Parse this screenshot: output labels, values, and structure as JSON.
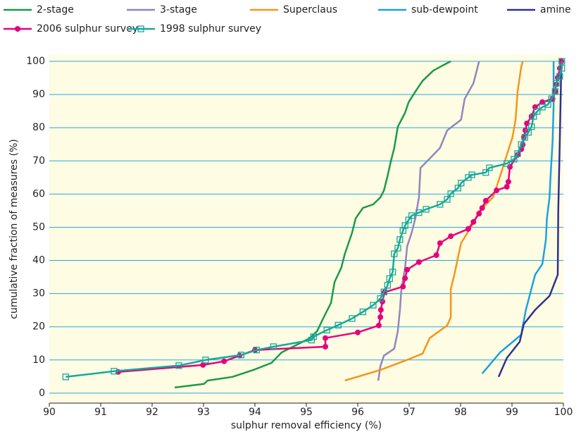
{
  "chart_data": {
    "type": "line",
    "xlabel": "sulphur removal efficiency (%)",
    "ylabel": "cumulative fraction of measures (%)",
    "xlim": [
      90,
      100
    ],
    "xticks": [
      90,
      91,
      92,
      93,
      94,
      95,
      96,
      97,
      98,
      99,
      100
    ],
    "ylim": [
      -3,
      102
    ],
    "yticks": [
      0,
      10,
      20,
      30,
      40,
      50,
      60,
      70,
      80,
      90,
      100
    ],
    "grid": true,
    "series": [
      {
        "name": "2-stage",
        "color": "#1a9a4a",
        "x": [
          92.44,
          93.01,
          93.08,
          93.56,
          93.97,
          94.32,
          94.52,
          94.79,
          95.07,
          95.21,
          95.34,
          95.48,
          95.55,
          95.68,
          95.75,
          95.89,
          95.96,
          96.1,
          96.3,
          96.44,
          96.51,
          96.58,
          96.64,
          96.71,
          96.78,
          96.92,
          96.99,
          97.12,
          97.26,
          97.47,
          97.67,
          97.81
        ],
        "values": [
          1.7,
          2.8,
          3.8,
          4.9,
          7,
          9.1,
          12.3,
          14.4,
          16.6,
          18.7,
          22.9,
          27.2,
          33.5,
          37.8,
          42,
          48.4,
          52.7,
          55.8,
          56.9,
          59,
          61.1,
          65.4,
          69.6,
          73.9,
          80.3,
          84.5,
          87.7,
          90.9,
          94.1,
          97.2,
          98.9,
          100
        ]
      },
      {
        "name": "3-stage",
        "color": "#8f86c0",
        "x": [
          96.4,
          96.44,
          96.51,
          96.71,
          96.78,
          96.82,
          96.85,
          96.92,
          96.96,
          97.05,
          97.12,
          97.19,
          97.22,
          97.4,
          97.6,
          97.74,
          98.01,
          98.08,
          98.25,
          98.36
        ],
        "values": [
          3.8,
          8.1,
          11.3,
          13.4,
          18.7,
          25.1,
          31.4,
          37.8,
          44.2,
          48.4,
          52.7,
          59,
          67.9,
          70.7,
          73.9,
          79.2,
          82.4,
          88.7,
          93.4,
          100
        ]
      },
      {
        "name": "Superclaus",
        "color": "#f7941d",
        "x": [
          95.75,
          96.44,
          96.99,
          97.26,
          97.4,
          97.74,
          97.81,
          97.81,
          97.88,
          97.95,
          98.01,
          98.22,
          98.36,
          98.63,
          98.77,
          98.9,
          99.01,
          99.07,
          99.11,
          99.18,
          99.21
        ],
        "values": [
          3.8,
          7,
          10.2,
          11.9,
          16.6,
          20.4,
          22.9,
          31.4,
          35.7,
          41,
          45.2,
          50.5,
          54.8,
          59,
          65.4,
          71.8,
          77.1,
          82.4,
          90.9,
          98.3,
          100
        ]
      },
      {
        "name": "sub-dewpoint",
        "color": "#1ba1e2",
        "x": [
          98.42,
          98.77,
          99.18,
          99.27,
          99.45,
          99.59,
          99.66,
          99.68,
          99.73,
          99.75,
          99.79,
          99.81,
          99.81
        ],
        "values": [
          5.9,
          12.3,
          17.6,
          25.1,
          35.7,
          38.9,
          46.3,
          52.7,
          59,
          65.4,
          76,
          86.6,
          100
        ]
      },
      {
        "name": "amine",
        "color": "#2e3192",
        "x": [
          98.74,
          98.9,
          99.15,
          99.23,
          99.45,
          99.73,
          99.89,
          99.9,
          99.93,
          99.96
        ],
        "values": [
          4.9,
          10.6,
          15.5,
          20.8,
          25.1,
          29.3,
          35.7,
          54.8,
          76,
          100
        ]
      },
      {
        "name": "2006 sulphur survey",
        "color": "#e6007e",
        "marker": "circle",
        "x": [
          91.34,
          92.99,
          93.4,
          93.7,
          94.0,
          95.37,
          95.37,
          96.0,
          96.41,
          96.44,
          96.45,
          96.48,
          96.52,
          96.88,
          96.92,
          96.96,
          97.19,
          97.53,
          97.6,
          97.81,
          98.15,
          98.25,
          98.36,
          98.42,
          98.49,
          98.7,
          98.9,
          98.93,
          98.96,
          99.11,
          99.18,
          99.21,
          99.23,
          99.26,
          99.29,
          99.38,
          99.45,
          99.59,
          99.79,
          99.84,
          99.86,
          99.89,
          99.93,
          99.96
        ],
        "values": [
          6.4,
          8.5,
          9.6,
          11.3,
          13,
          14,
          16.6,
          18.3,
          20.4,
          22.9,
          25.1,
          27.6,
          30.4,
          32.1,
          34.6,
          37.2,
          39.5,
          41.6,
          45.2,
          47.3,
          49.5,
          51.6,
          54.1,
          55.8,
          58,
          61.1,
          62.2,
          63.7,
          68.2,
          71.8,
          73.5,
          74.9,
          77.1,
          79.2,
          81.3,
          83.4,
          86.2,
          87.7,
          88.7,
          90.9,
          93,
          95.1,
          97.9,
          100
        ]
      },
      {
        "name": "1998 sulphur survey",
        "color": "#16a79d",
        "marker": "square",
        "x": [
          90.32,
          91.26,
          92.52,
          93.04,
          93.73,
          94.03,
          94.36,
          95.1,
          95.14,
          95.4,
          95.62,
          95.89,
          96.1,
          96.3,
          96.44,
          96.51,
          96.58,
          96.62,
          96.68,
          96.71,
          96.78,
          96.82,
          96.88,
          96.92,
          96.99,
          97.05,
          97.19,
          97.33,
          97.6,
          97.74,
          97.81,
          97.95,
          98.01,
          98.15,
          98.22,
          98.49,
          98.56,
          98.9,
          99.04,
          99.11,
          99.18,
          99.25,
          99.32,
          99.38,
          99.42,
          99.49,
          99.59,
          99.7,
          99.77,
          99.84,
          99.86,
          99.93,
          99.97,
          99.97
        ],
        "values": [
          4.9,
          6.6,
          8.3,
          10,
          11.5,
          13,
          14,
          16,
          17,
          19,
          20.5,
          22.5,
          24.5,
          26.5,
          28.5,
          30.5,
          32.5,
          34.5,
          36.5,
          42,
          43.7,
          46.3,
          49,
          50.5,
          52.2,
          53.5,
          54.4,
          55.4,
          56.9,
          58.4,
          60.1,
          61.8,
          63.3,
          65,
          65.8,
          66.5,
          67.9,
          69.2,
          70.5,
          72.2,
          74.9,
          77.1,
          78.6,
          80.3,
          83.4,
          84.9,
          86.2,
          87,
          88.7,
          90.9,
          93.4,
          95.5,
          97.9,
          100
        ]
      }
    ]
  }
}
